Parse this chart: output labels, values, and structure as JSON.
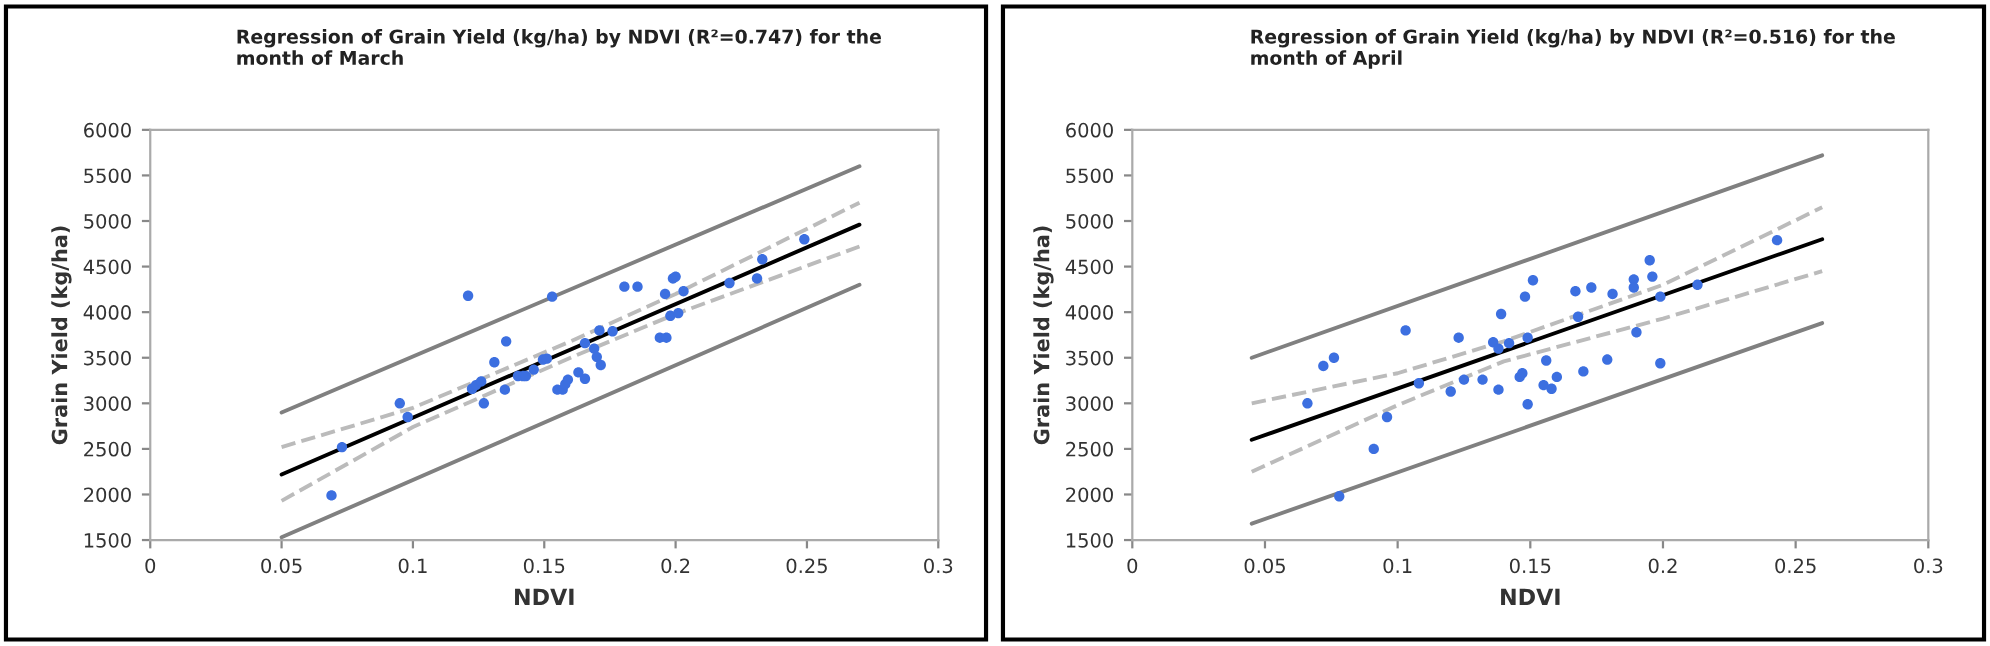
{
  "chart_data": [
    {
      "type": "scatter",
      "title": "Regression of Grain Yield (kg/ha) by NDVI (R²=0.747) for the month of March",
      "xlabel": "NDVI",
      "ylabel": "Grain Yield (kg/ha)",
      "xlim": [
        0,
        0.3
      ],
      "xticks": [
        0,
        0.05,
        0.1,
        0.15,
        0.2,
        0.25,
        0.3
      ],
      "ylim": [
        1500,
        6000
      ],
      "yticks": [
        1500,
        2000,
        2500,
        3000,
        3500,
        4000,
        4500,
        5000,
        5500,
        6000
      ],
      "grid": false,
      "legend": false,
      "series": [
        {
          "type": "scatter",
          "marker": "circle",
          "color": "#3c6fe0",
          "x": [
            0.069,
            0.073,
            0.095,
            0.098,
            0.121,
            0.1225,
            0.124,
            0.126,
            0.127,
            0.131,
            0.1355,
            0.135,
            0.14,
            0.142,
            0.143,
            0.146,
            0.1495,
            0.151,
            0.153,
            0.155,
            0.157,
            0.158,
            0.159,
            0.163,
            0.1655,
            0.1655,
            0.169,
            0.17,
            0.1715,
            0.171,
            0.176,
            0.1805,
            0.1855,
            0.194,
            0.1965,
            0.196,
            0.199,
            0.2,
            0.198,
            0.201,
            0.203,
            0.2205,
            0.231,
            0.233,
            0.249
          ],
          "values": [
            1990,
            2520,
            3000,
            2850,
            4180,
            3160,
            3200,
            3240,
            3000,
            3450,
            3680,
            3150,
            3300,
            3300,
            3300,
            3370,
            3480,
            3490,
            4170,
            3150,
            3150,
            3210,
            3260,
            3340,
            3270,
            3660,
            3600,
            3510,
            3420,
            3800,
            3790,
            4280,
            4280,
            3720,
            3720,
            4200,
            4370,
            4390,
            3960,
            3990,
            4230,
            4320,
            4370,
            4580,
            4800
          ]
        },
        {
          "type": "line",
          "line_style": "solid",
          "color": "#000000",
          "x": [
            0.05,
            0.27
          ],
          "values": [
            2220,
            4960
          ]
        },
        {
          "type": "line",
          "line_style": "dashed",
          "color": "#bbbbbb",
          "x": [
            0.05,
            0.1,
            0.16,
            0.2,
            0.27
          ],
          "values": [
            2520,
            2950,
            3680,
            4200,
            5200
          ]
        },
        {
          "type": "line",
          "line_style": "dashed",
          "color": "#bbbbbb",
          "x": [
            0.05,
            0.1,
            0.16,
            0.2,
            0.27
          ],
          "values": [
            1930,
            2740,
            3500,
            3980,
            4720
          ]
        },
        {
          "type": "line",
          "line_style": "solid",
          "color": "#808080",
          "x": [
            0.05,
            0.27
          ],
          "values": [
            2900,
            5600
          ]
        },
        {
          "type": "line",
          "line_style": "solid",
          "color": "#808080",
          "x": [
            0.05,
            0.27
          ],
          "values": [
            1530,
            4300
          ]
        }
      ]
    },
    {
      "type": "scatter",
      "title": "Regression of Grain Yield (kg/ha) by NDVI (R²=0.516) for the month of April",
      "xlabel": "NDVI",
      "ylabel": "Grain Yield (kg/ha)",
      "xlim": [
        0,
        0.3
      ],
      "xticks": [
        0,
        0.05,
        0.1,
        0.15,
        0.2,
        0.25,
        0.3
      ],
      "ylim": [
        1500,
        6000
      ],
      "yticks": [
        1500,
        2000,
        2500,
        3000,
        3500,
        4000,
        4500,
        5000,
        5500,
        6000
      ],
      "grid": false,
      "legend": false,
      "series": [
        {
          "type": "scatter",
          "marker": "circle",
          "color": "#3c6fe0",
          "x": [
            0.066,
            0.072,
            0.076,
            0.078,
            0.091,
            0.096,
            0.103,
            0.108,
            0.12,
            0.123,
            0.125,
            0.132,
            0.136,
            0.138,
            0.139,
            0.138,
            0.142,
            0.146,
            0.147,
            0.148,
            0.149,
            0.149,
            0.151,
            0.155,
            0.156,
            0.158,
            0.16,
            0.167,
            0.168,
            0.17,
            0.173,
            0.179,
            0.181,
            0.189,
            0.189,
            0.19,
            0.195,
            0.196,
            0.199,
            0.199,
            0.213,
            0.243
          ],
          "values": [
            3000,
            3410,
            3500,
            1980,
            2500,
            2850,
            3800,
            3220,
            3130,
            3720,
            3260,
            3260,
            3670,
            3600,
            3980,
            3150,
            3660,
            3290,
            3330,
            4170,
            3720,
            2990,
            4350,
            3200,
            3470,
            3160,
            3290,
            4230,
            3950,
            3350,
            4270,
            3480,
            4200,
            4360,
            4270,
            3780,
            4570,
            4390,
            4170,
            3440,
            4300,
            4790
          ]
        },
        {
          "type": "line",
          "line_style": "solid",
          "color": "#000000",
          "x": [
            0.045,
            0.26
          ],
          "values": [
            2600,
            4800
          ]
        },
        {
          "type": "line",
          "line_style": "dashed",
          "color": "#bbbbbb",
          "x": [
            0.045,
            0.1,
            0.14,
            0.2,
            0.26
          ],
          "values": [
            3000,
            3330,
            3680,
            4300,
            5150
          ]
        },
        {
          "type": "line",
          "line_style": "dashed",
          "color": "#bbbbbb",
          "x": [
            0.045,
            0.1,
            0.14,
            0.2,
            0.26
          ],
          "values": [
            2250,
            2980,
            3460,
            3930,
            4450
          ]
        },
        {
          "type": "line",
          "line_style": "solid",
          "color": "#808080",
          "x": [
            0.045,
            0.26
          ],
          "values": [
            3500,
            5720
          ]
        },
        {
          "type": "line",
          "line_style": "solid",
          "color": "#808080",
          "x": [
            0.045,
            0.26
          ],
          "values": [
            1680,
            3880
          ]
        }
      ]
    }
  ]
}
